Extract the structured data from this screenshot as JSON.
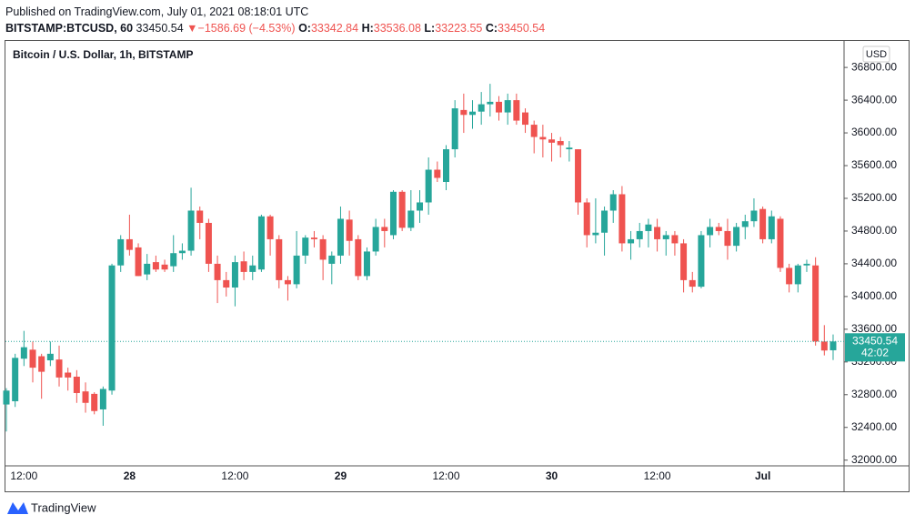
{
  "header": {
    "published": "Published on TradingView.com, July 01, 2021 08:18:01 UTC",
    "symbol": "BITSTAMP:BTCUSD, 60",
    "last": "33450.54",
    "arrow": "▼",
    "change": "−1586.69 (−4.53%)",
    "o_label": "O:",
    "o_value": "33342.84",
    "h_label": "H:",
    "h_value": "33536.08",
    "l_label": "L:",
    "l_value": "33223.55",
    "c_label": "C:",
    "c_value": "33450.54"
  },
  "footer": {
    "brand": "TradingView"
  },
  "chart_data": {
    "type": "candlestick",
    "title": "Bitcoin / U.S. Dollar, 1h, BITSTAMP",
    "currency": "USD",
    "countdown": "42:02",
    "up_color": "#26a69a",
    "down_color": "#ef5350",
    "categories": [
      null,
      null,
      "12:00",
      null,
      null,
      null,
      null,
      null,
      null,
      null,
      null,
      null,
      null,
      null,
      "28",
      null,
      null,
      null,
      null,
      null,
      null,
      null,
      null,
      null,
      null,
      null,
      "12:00",
      null,
      null,
      null,
      null,
      null,
      null,
      null,
      null,
      null,
      null,
      null,
      "29",
      null,
      null,
      null,
      null,
      null,
      null,
      null,
      null,
      null,
      null,
      null,
      "12:00",
      null,
      null,
      null,
      null,
      null,
      null,
      null,
      null,
      null,
      null,
      null,
      "30",
      null,
      null,
      null,
      null,
      null,
      null,
      null,
      null,
      null,
      null,
      null,
      "12:00",
      null,
      null,
      null,
      null,
      null,
      null,
      null,
      null,
      null,
      null,
      null,
      "Jul",
      null,
      null,
      null,
      null,
      null,
      null,
      null,
      null
    ],
    "open": [
      32680,
      32720,
      33240,
      33350,
      33270,
      33220,
      33230,
      33070,
      33020,
      32840,
      32810,
      32620,
      32850,
      34380,
      34700,
      34600,
      34270,
      34420,
      34390,
      34370,
      34530,
      34560,
      35050,
      34900,
      34400,
      34200,
      34110,
      34430,
      34300,
      34330,
      34980,
      34700,
      34200,
      34150,
      34500,
      34720,
      34700,
      34400,
      34500,
      34940,
      34700,
      34250,
      34550,
      34850,
      34750,
      35280,
      34840,
      35050,
      35150,
      35550,
      35400,
      35800,
      36280,
      36220,
      36260,
      36350,
      36380,
      36250,
      36400,
      36250,
      36100,
      35950,
      35920,
      35900,
      35800,
      35800,
      35150,
      34750,
      34780,
      35050,
      35250,
      34650,
      34700,
      34800,
      34850,
      34700,
      34750,
      34650,
      34200,
      34120,
      34750,
      34850,
      34800,
      34620,
      34850,
      34920,
      35070,
      34700,
      34950,
      34350,
      34150,
      34380,
      34380,
      33450,
      33342.84
    ],
    "high": [
      32880,
      33300,
      33580,
      33450,
      33300,
      33450,
      33400,
      33130,
      33100,
      32950,
      32830,
      32900,
      34400,
      34750,
      35000,
      34650,
      34520,
      34500,
      34450,
      34750,
      34650,
      35330,
      35100,
      34950,
      34500,
      34300,
      34500,
      34550,
      34500,
      35000,
      35000,
      34750,
      34250,
      34800,
      34750,
      34800,
      34750,
      34550,
      35100,
      35050,
      34750,
      34600,
      34950,
      34950,
      35300,
      35300,
      35300,
      35300,
      35700,
      35650,
      35850,
      36400,
      36480,
      36400,
      36500,
      36600,
      36450,
      36480,
      36480,
      36300,
      36150,
      36100,
      36000,
      35950,
      35900,
      35800,
      35200,
      35200,
      35100,
      35300,
      35350,
      34800,
      34900,
      34950,
      34950,
      34800,
      34800,
      34700,
      34300,
      34800,
      34950,
      34900,
      34950,
      34900,
      35000,
      35200,
      35100,
      35050,
      34980,
      34400,
      34400,
      34450,
      34480,
      33650,
      33536.08
    ],
    "low": [
      32350,
      32650,
      33150,
      32950,
      32750,
      33150,
      32900,
      32850,
      32700,
      32580,
      32560,
      32420,
      32800,
      34300,
      34500,
      34250,
      34200,
      34300,
      34300,
      34300,
      34450,
      34500,
      34700,
      34300,
      33920,
      34000,
      33880,
      34200,
      34200,
      34300,
      34500,
      34100,
      33950,
      34100,
      34400,
      34600,
      34200,
      34150,
      34400,
      34500,
      34200,
      34200,
      34500,
      34600,
      34700,
      34800,
      34800,
      34900,
      35000,
      35400,
      35300,
      35700,
      36000,
      36050,
      36100,
      36200,
      36150,
      36100,
      36100,
      36000,
      35750,
      35700,
      35650,
      35700,
      35650,
      35000,
      34600,
      34650,
      34500,
      34900,
      34550,
      34450,
      34600,
      34600,
      34550,
      34500,
      34500,
      34050,
      34050,
      34100,
      34600,
      34750,
      34450,
      34550,
      34700,
      34850,
      34650,
      34650,
      34300,
      34050,
      34050,
      34300,
      33400,
      33280,
      33223.55
    ],
    "close": [
      32850,
      33250,
      33380,
      33130,
      33080,
      33300,
      33010,
      33010,
      32820,
      32700,
      32600,
      32870,
      34380,
      34700,
      34570,
      34250,
      34400,
      34330,
      34330,
      34530,
      34560,
      35050,
      34900,
      34400,
      34200,
      34110,
      34420,
      34300,
      34380,
      34980,
      34700,
      34200,
      34150,
      34500,
      34720,
      34700,
      34450,
      34500,
      34950,
      34680,
      34250,
      34550,
      34850,
      34800,
      35280,
      34840,
      35050,
      35150,
      35550,
      35450,
      35800,
      36300,
      36220,
      36260,
      36350,
      36380,
      36250,
      36400,
      36150,
      36100,
      35950,
      35920,
      35880,
      35850,
      35820,
      35150,
      34750,
      34780,
      35050,
      35250,
      34650,
      34700,
      34800,
      34880,
      34700,
      34750,
      34650,
      34200,
      34120,
      34750,
      34850,
      34800,
      34620,
      34850,
      34920,
      35050,
      34700,
      34980,
      34350,
      34150,
      34380,
      34400,
      33450,
      33340,
      33450.54
    ],
    "ylim": [
      31930,
      37135
    ],
    "yticks": [
      {
        "value": 32000,
        "label": "32000.00"
      },
      {
        "value": 32400,
        "label": "32400.00"
      },
      {
        "value": 32800,
        "label": "32800.00"
      },
      {
        "value": 33200,
        "label": "33200.00"
      },
      {
        "value": 33600,
        "label": "33600.00"
      },
      {
        "value": 34000,
        "label": "34000.00"
      },
      {
        "value": 34400,
        "label": "34400.00"
      },
      {
        "value": 34800,
        "label": "34800.00"
      },
      {
        "value": 35200,
        "label": "35200.00"
      },
      {
        "value": 35600,
        "label": "35600.00"
      },
      {
        "value": 36000,
        "label": "36000.00"
      },
      {
        "value": 36400,
        "label": "36400.00"
      },
      {
        "value": 36800,
        "label": "36800.00"
      }
    ]
  }
}
